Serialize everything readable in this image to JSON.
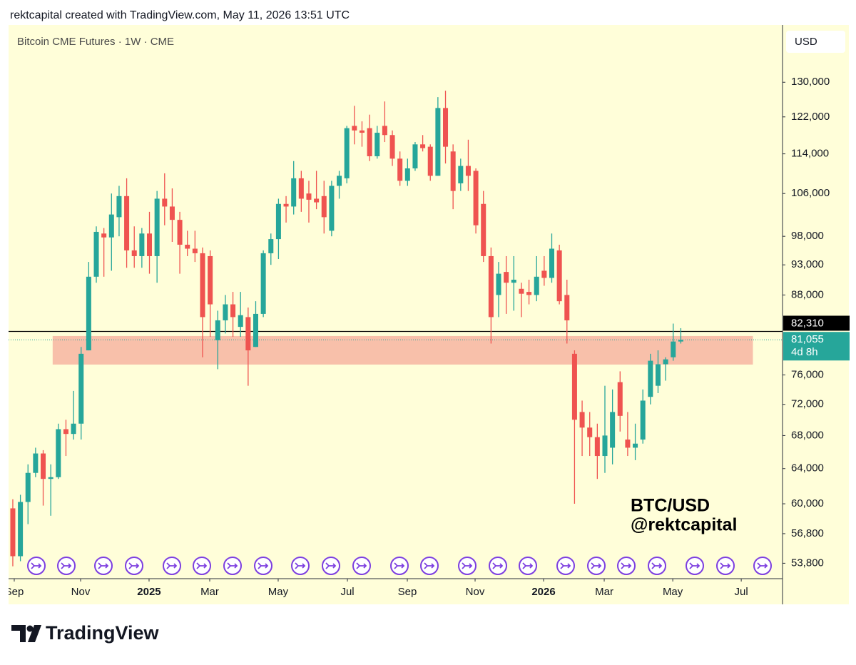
{
  "header": "rektcapital created with TradingView.com, May 11, 2026 13:51 UTC",
  "footer": "TradingView",
  "chart_data": {
    "type": "candlestick",
    "title": "Bitcoin CME Futures · 1W · CME",
    "currency": "USD",
    "annotations": [
      "BTC/USD",
      "@rektcapital"
    ],
    "log_scale": true,
    "up_color": "#26a69a",
    "down_color": "#ef5350",
    "zone_color": "#f7b9a4",
    "zone": [
      77460,
      81620
    ],
    "hline": {
      "value": 82310,
      "label": "82,310"
    },
    "last_price": {
      "value": 81055,
      "label": "81,055"
    },
    "countdown": "4d 8h",
    "ylim": [
      52300,
      144400
    ],
    "yticks": [
      {
        "value": 130000,
        "label": "130,000"
      },
      {
        "value": 122000,
        "label": "122,000"
      },
      {
        "value": 114000,
        "label": "114,000"
      },
      {
        "value": 106000,
        "label": "106,000"
      },
      {
        "value": 98000,
        "label": "98,000"
      },
      {
        "value": 93000,
        "label": "93,000"
      },
      {
        "value": 88000,
        "label": "88,000"
      },
      {
        "value": 76000,
        "label": "76,000"
      },
      {
        "value": 72000,
        "label": "72,000"
      },
      {
        "value": 68000,
        "label": "68,000"
      },
      {
        "value": 64000,
        "label": "64,000"
      },
      {
        "value": 60000,
        "label": "60,000"
      },
      {
        "value": 56800,
        "label": "56,800"
      },
      {
        "value": 53800,
        "label": "53,800"
      }
    ],
    "xlim": [
      -0.56,
      101.4
    ],
    "xticks": [
      {
        "value": 0.19,
        "label": "Sep"
      },
      {
        "value": 8.93,
        "label": "Nov"
      },
      {
        "value": 17.95,
        "label": "2025"
      },
      {
        "value": 25.94,
        "label": "Mar"
      },
      {
        "value": 34.96,
        "label": "May"
      },
      {
        "value": 44.08,
        "label": "Jul"
      },
      {
        "value": 51.97,
        "label": "Sep"
      },
      {
        "value": 60.9,
        "label": "Nov"
      },
      {
        "value": 69.92,
        "label": "2026"
      },
      {
        "value": 77.91,
        "label": "Mar"
      },
      {
        "value": 86.94,
        "label": "May"
      },
      {
        "value": 95.96,
        "label": "Jul"
      }
    ],
    "open": [
      59500,
      54500,
      60200,
      63500,
      65800,
      62800,
      63000,
      68800,
      68200,
      69500,
      79500,
      91000,
      98500,
      97800,
      101500,
      105500,
      95500,
      94500,
      98500,
      94500,
      105000,
      103500,
      101000,
      96500,
      95800,
      95000,
      94500,
      81000,
      84000,
      86500,
      83000,
      84500,
      80000,
      85000,
      95000,
      97500,
      104000,
      103500,
      109000,
      106000,
      105000,
      105500,
      99000,
      107500,
      109000,
      120000,
      119000,
      119500,
      113500,
      120000,
      118000,
      113000,
      108500,
      111000,
      116000,
      115500,
      109500,
      124000,
      114500,
      108000,
      111500,
      110500,
      104000,
      94500,
      88000,
      91800,
      90000,
      89000,
      88500,
      88000,
      92000,
      90800,
      95500,
      88000,
      79000,
      71000,
      69000,
      67800,
      65500,
      66500,
      75000,
      67500,
      66500,
      67500,
      73000,
      74500,
      77500,
      78500,
      80800
    ],
    "high": [
      60500,
      61000,
      64500,
      66500,
      66200,
      64500,
      69500,
      70000,
      73800,
      80000,
      93500,
      99800,
      99500,
      106000,
      107500,
      109000,
      99800,
      99500,
      102500,
      106500,
      110000,
      107000,
      102500,
      99000,
      99000,
      96000,
      95500,
      85500,
      88000,
      88500,
      88500,
      86000,
      87000,
      95500,
      98500,
      105000,
      105500,
      112500,
      110500,
      108500,
      110500,
      108500,
      108500,
      110500,
      120000,
      124500,
      121000,
      122500,
      120000,
      125500,
      119000,
      114500,
      113000,
      116500,
      118000,
      116000,
      126500,
      128000,
      116000,
      113000,
      117000,
      111000,
      106500,
      96000,
      93500,
      94500,
      94500,
      90000,
      90500,
      94500,
      94500,
      98500,
      96500,
      90500,
      79500,
      72500,
      71000,
      69500,
      74500,
      74000,
      76500,
      71000,
      69500,
      74000,
      79000,
      79500,
      78500,
      83500,
      82800
    ],
    "low": [
      53500,
      54000,
      57800,
      63000,
      59800,
      58700,
      62800,
      65500,
      67500,
      67500,
      79500,
      90000,
      91000,
      92000,
      98000,
      92500,
      92500,
      92500,
      91500,
      90000,
      100000,
      97000,
      91500,
      94500,
      93500,
      78500,
      81500,
      76800,
      82000,
      81500,
      81500,
      74500,
      80000,
      84500,
      93000,
      94000,
      100500,
      102000,
      102500,
      100500,
      103000,
      98500,
      98000,
      105000,
      108000,
      116000,
      115500,
      112500,
      113000,
      116500,
      111500,
      107500,
      107500,
      110500,
      114500,
      108500,
      109500,
      112000,
      103000,
      106500,
      106500,
      98500,
      93500,
      80500,
      84500,
      85000,
      85500,
      84500,
      86500,
      87000,
      89500,
      90000,
      86500,
      80500,
      60000,
      65500,
      65500,
      62800,
      63500,
      64500,
      68500,
      65500,
      65000,
      67000,
      72000,
      73500,
      75200,
      78000,
      80500
    ],
    "close": [
      54500,
      60200,
      63500,
      65800,
      62800,
      63000,
      68800,
      68200,
      69500,
      79000,
      91000,
      98800,
      97800,
      102000,
      105500,
      95500,
      94500,
      98500,
      94500,
      105000,
      103500,
      101000,
      96500,
      95800,
      95000,
      84500,
      86500,
      84000,
      86500,
      84500,
      84800,
      79500,
      85000,
      95000,
      97500,
      104000,
      103500,
      109000,
      105000,
      104800,
      104300,
      101500,
      107500,
      109500,
      119500,
      119000,
      118500,
      113500,
      118500,
      118000,
      113000,
      108500,
      111000,
      116000,
      115200,
      109500,
      124000,
      115500,
      106500,
      111500,
      109500,
      100000,
      94500,
      84500,
      91500,
      90000,
      90500,
      88200,
      88000,
      91000,
      90800,
      95800,
      87000,
      84000,
      70000,
      69000,
      67800,
      65500,
      68000,
      71000,
      70500,
      66500,
      67000,
      72500,
      78000,
      77500,
      78200,
      80800,
      81055
    ]
  }
}
